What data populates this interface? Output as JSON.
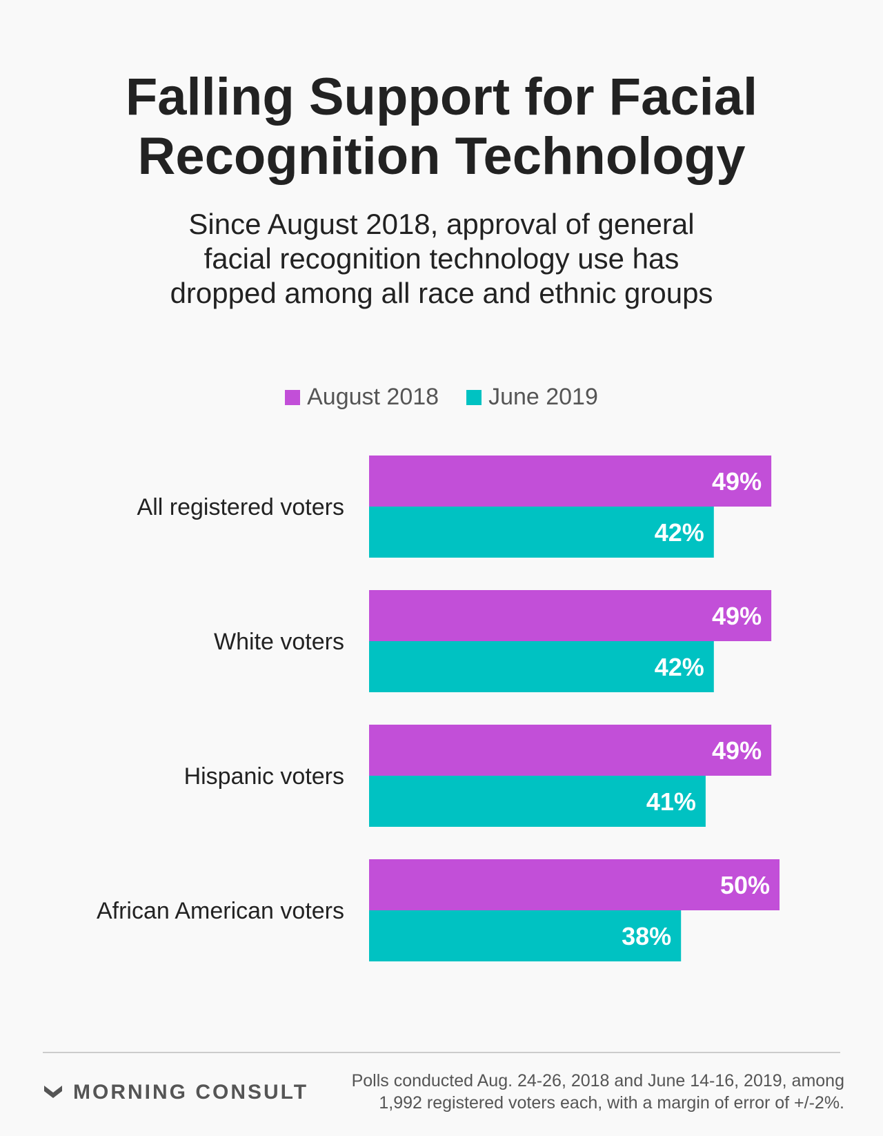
{
  "chart_data": {
    "type": "bar",
    "orientation": "horizontal",
    "title": "Falling Support for Facial\nRecognition Technology",
    "subtitle": "Since August 2018, approval of general\nfacial recognition technology use has\ndropped among all race and ethnic groups",
    "categories": [
      "All registered voters",
      "White voters",
      "Hispanic voters",
      "African American voters"
    ],
    "series": [
      {
        "name": "August 2018",
        "color": "#c24fd8",
        "values": [
          49,
          49,
          49,
          50
        ],
        "labels": [
          "49%",
          "49%",
          "49%",
          "50%"
        ]
      },
      {
        "name": "June 2019",
        "color": "#00c2c2",
        "values": [
          42,
          42,
          41,
          38
        ],
        "labels": [
          "42%",
          "42%",
          "41%",
          "38%"
        ]
      }
    ],
    "xlim": [
      0,
      100
    ],
    "legend_position": "top-center",
    "grid": false
  },
  "footer": {
    "brand": "MORNING CONSULT",
    "note": "Polls conducted Aug. 24-26, 2018 and June 14-16, 2019, among\n1,992 registered voters each, with a margin of error of +/-2%."
  },
  "icons": {
    "brand_logo": "morning-consult-chevron-icon"
  }
}
